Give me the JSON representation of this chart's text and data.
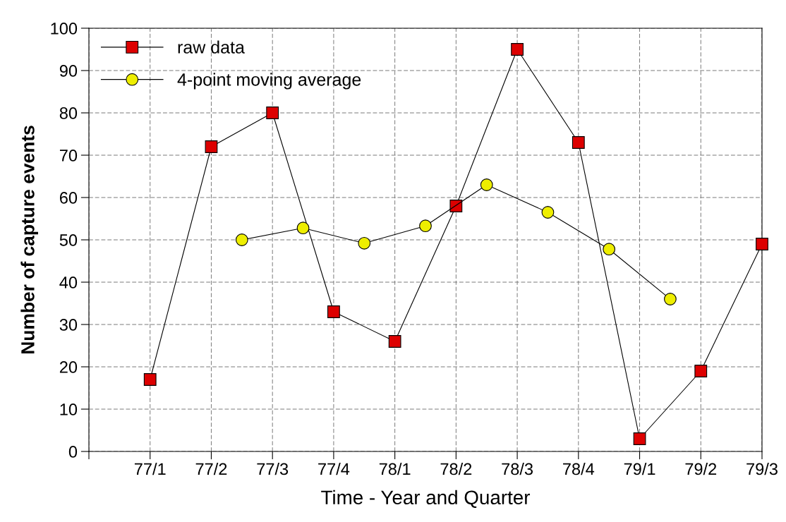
{
  "chart_data": {
    "type": "line",
    "xlabel": "Time - Year and Quarter",
    "ylabel": "Number of capture events",
    "categories": [
      null,
      null,
      "77/1",
      null,
      "77/2",
      null,
      "77/3",
      null,
      "77/4",
      null,
      "78/1",
      null,
      "78/2",
      null,
      "78/3",
      null,
      "78/4",
      null,
      "79/1",
      null,
      "79/2",
      null,
      "79/3"
    ],
    "ylim": [
      0,
      100
    ],
    "yticks": [
      0,
      10,
      20,
      30,
      40,
      50,
      60,
      70,
      80,
      90,
      100
    ],
    "grid": true,
    "legend": "top left",
    "series": [
      {
        "name": "raw data",
        "color": "#dd0000",
        "marker": "square",
        "values": [
          null,
          null,
          17,
          null,
          72,
          null,
          80,
          null,
          33,
          null,
          26,
          null,
          58,
          null,
          95,
          null,
          73,
          null,
          3,
          null,
          19,
          null,
          49
        ]
      },
      {
        "name": "4-point moving average",
        "color": "#eeee00",
        "marker": "circle",
        "values": [
          null,
          null,
          null,
          null,
          null,
          50,
          null,
          52.8,
          null,
          49.2,
          null,
          53.3,
          null,
          63,
          null,
          56.5,
          null,
          47.8,
          null,
          36,
          null,
          null,
          null
        ]
      }
    ]
  }
}
